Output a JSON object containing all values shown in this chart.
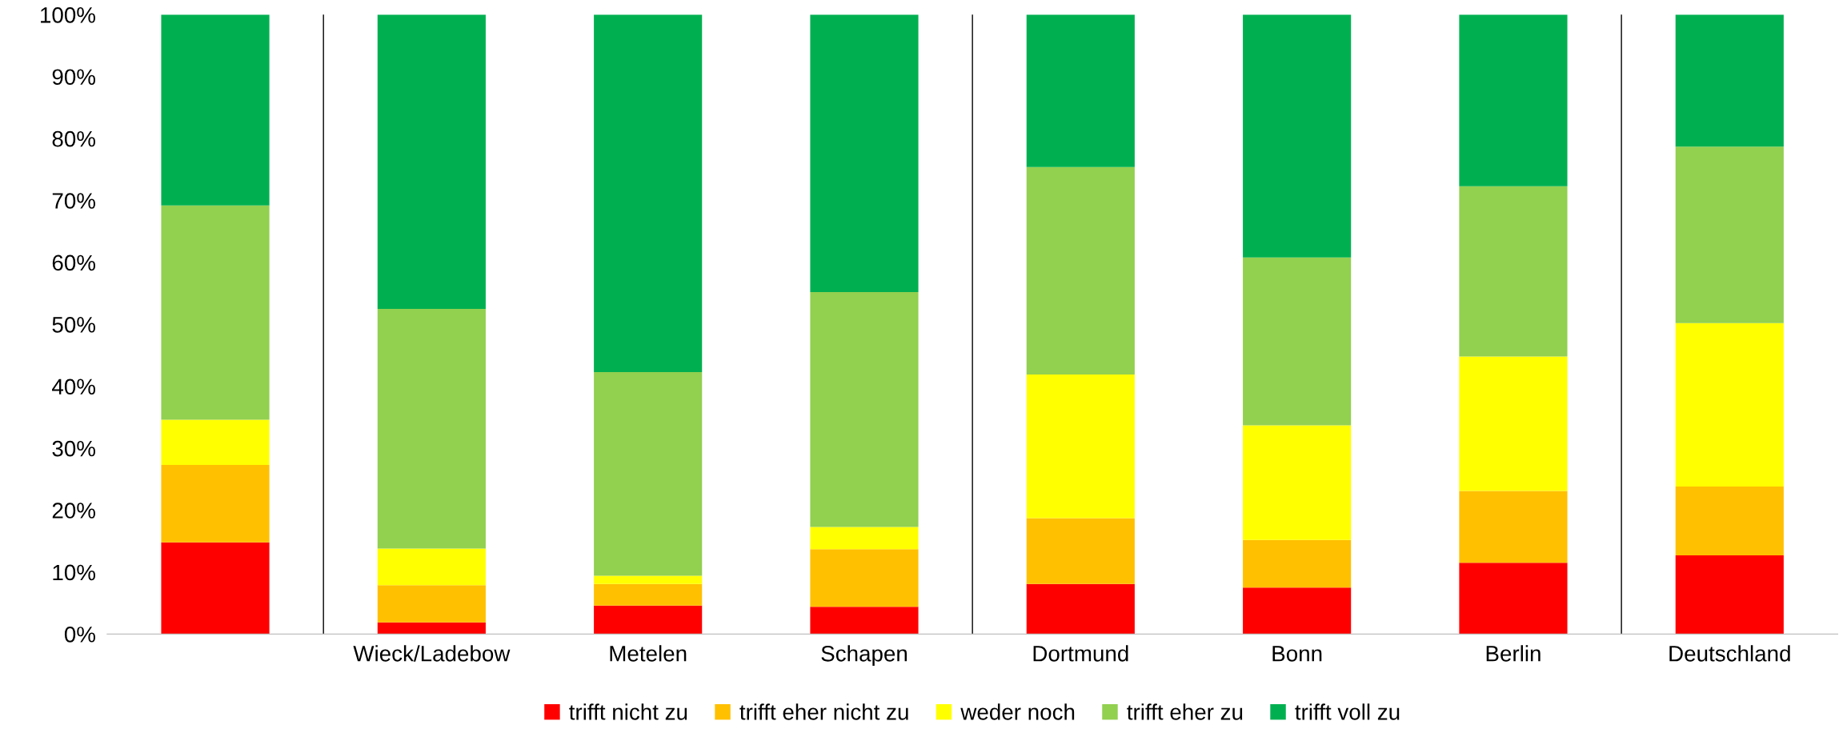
{
  "chart_data": {
    "type": "bar",
    "stacked": true,
    "categories": [
      null,
      "Wieck/Ladebow",
      "Metelen",
      "Schapen",
      "Dortmund",
      "Bonn",
      "Berlin",
      "Deutschland"
    ],
    "series": [
      {
        "name": "trifft nicht zu",
        "color": "#ff0000",
        "values": [
          14.8,
          1.9,
          4.6,
          4.4,
          8.1,
          7.5,
          11.5,
          12.7
        ]
      },
      {
        "name": "trifft eher nicht zu",
        "color": "#ffc000",
        "values": [
          12.5,
          6.0,
          3.5,
          9.3,
          10.6,
          7.7,
          11.6,
          11.1
        ]
      },
      {
        "name": "weder noch",
        "color": "#ffff00",
        "values": [
          7.3,
          5.9,
          1.3,
          3.6,
          23.2,
          18.5,
          21.7,
          26.4
        ]
      },
      {
        "name": "trifft eher zu",
        "color": "#92d050",
        "values": [
          34.6,
          38.7,
          32.9,
          37.9,
          33.5,
          27.1,
          27.5,
          28.5
        ]
      },
      {
        "name": "trifft voll zu",
        "color": "#00b050",
        "values": [
          30.8,
          47.5,
          57.7,
          44.8,
          24.6,
          39.2,
          27.7,
          21.3
        ]
      }
    ],
    "ylim": [
      0,
      100
    ],
    "yticks": [
      {
        "value": 0,
        "label": "0%"
      },
      {
        "value": 10,
        "label": "10%"
      },
      {
        "value": 20,
        "label": "20%"
      },
      {
        "value": 30,
        "label": "30%"
      },
      {
        "value": 40,
        "label": "40%"
      },
      {
        "value": 50,
        "label": "50%"
      },
      {
        "value": 60,
        "label": "60%"
      },
      {
        "value": 70,
        "label": "70%"
      },
      {
        "value": 80,
        "label": "80%"
      },
      {
        "value": 90,
        "label": "90%"
      },
      {
        "value": 100,
        "label": "100%"
      }
    ],
    "grid": false,
    "legend": "bottom"
  }
}
